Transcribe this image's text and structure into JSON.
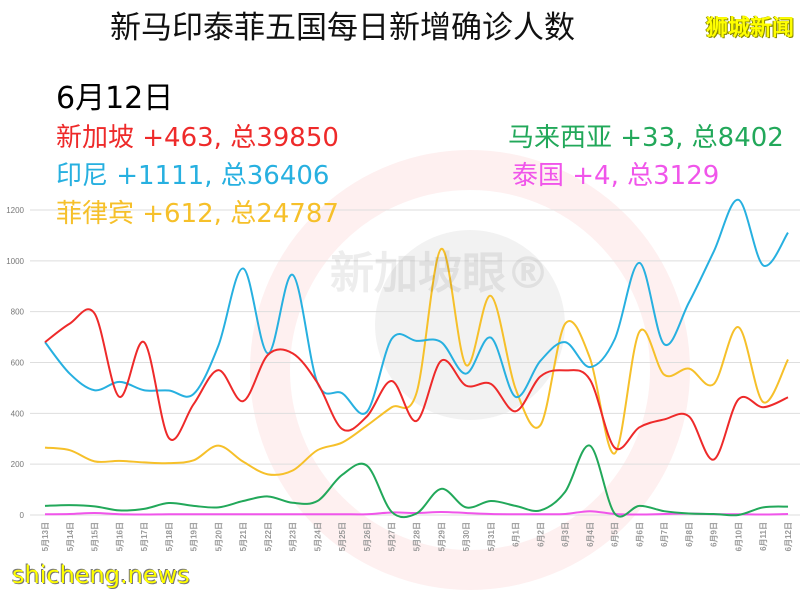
{
  "header": {
    "title": "新马印泰菲五国每日新增确诊人数",
    "brand": "狮城新闻",
    "date": "6月12日",
    "watermark": "新加坡眼®",
    "site": "shicheng.news"
  },
  "legend": [
    {
      "text": "新加坡 +463, 总39850",
      "color": "#ee2a2a"
    },
    {
      "text": "印尼 +1111, 总36406",
      "color": "#27b0e0"
    },
    {
      "text": "菲律宾 +612, 总24787",
      "color": "#f6c02a"
    },
    {
      "text": "马来西亚 +33, 总8402",
      "color": "#22a85a"
    },
    {
      "text": "泰国 +4, 总3129",
      "color": "#f055ea"
    }
  ],
  "chart_data": {
    "type": "line",
    "title": "新马印泰菲五国每日新增确诊人数",
    "ylim": [
      0,
      1200
    ],
    "yticks": [
      "0",
      "200",
      "400",
      "600",
      "800",
      "1000",
      "1200"
    ],
    "grid": true,
    "categories": [
      "5月13日",
      "5月14日",
      "5月15日",
      "5月16日",
      "5月17日",
      "5月18日",
      "5月19日",
      "5月20日",
      "5月21日",
      "5月22日",
      "5月23日",
      "5月24日",
      "5月25日",
      "5月26日",
      "5月27日",
      "5月28日",
      "5月29日",
      "5月30日",
      "5月31日",
      "6月1日",
      "6月2日",
      "6月3日",
      "6月4日",
      "6月5日",
      "6月6日",
      "6月7日",
      "6月8日",
      "6月9日",
      "6月10日",
      "6月11日",
      "6月12日"
    ],
    "series": [
      {
        "name": "新加坡",
        "color": "#ee2a2a",
        "values": [
          680,
          753,
          793,
          465,
          680,
          303,
          436,
          570,
          448,
          630,
          636,
          520,
          338,
          388,
          527,
          370,
          607,
          509,
          516,
          408,
          545,
          569,
          533,
          265,
          345,
          376,
          388,
          218,
          455,
          424,
          463
        ]
      },
      {
        "name": "印尼",
        "color": "#27b0e0",
        "values": [
          680,
          556,
          491,
          524,
          491,
          490,
          476,
          666,
          970,
          636,
          945,
          520,
          479,
          406,
          693,
          685,
          680,
          556,
          698,
          465,
          606,
          680,
          582,
          691,
          992,
          672,
          836,
          1036,
          1240,
          982,
          1111
        ]
      },
      {
        "name": "菲律宾",
        "color": "#f6c02a",
        "values": [
          265,
          255,
          211,
          213,
          207,
          204,
          215,
          273,
          210,
          160,
          175,
          255,
          285,
          352,
          424,
          480,
          1047,
          590,
          862,
          497,
          353,
          752,
          618,
          242,
          721,
          552,
          576,
          515,
          739,
          444,
          612
        ]
      },
      {
        "name": "马来西亚",
        "color": "#22a85a",
        "values": [
          36,
          39,
          34,
          18,
          24,
          47,
          36,
          30,
          55,
          73,
          48,
          55,
          158,
          194,
          12,
          6,
          103,
          30,
          55,
          36,
          18,
          91,
          273,
          6,
          36,
          15,
          6,
          4,
          0,
          30,
          33
        ]
      },
      {
        "name": "泰国",
        "color": "#f055ea",
        "values": [
          3,
          4,
          8,
          3,
          2,
          3,
          3,
          3,
          3,
          3,
          3,
          3,
          3,
          3,
          10,
          8,
          12,
          8,
          4,
          3,
          3,
          4,
          15,
          4,
          2,
          4,
          6,
          3,
          3,
          2,
          4
        ]
      }
    ]
  }
}
